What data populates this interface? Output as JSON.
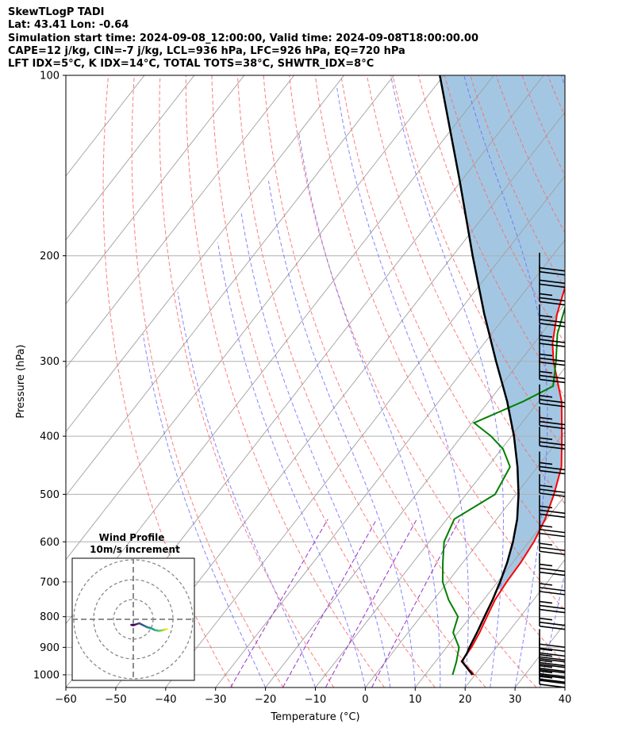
{
  "header": {
    "line1": "SkewTLogP TADI",
    "line2": "Lat: 43.41   Lon: -0.64",
    "line3": "Simulation start time: 2024-09-08_12:00:00, Valid time: 2024-09-08T18:00:00.00",
    "line4": "CAPE=12 j/kg, CIN=-7 j/kg, LCL=936 hPa, LFC=926 hPa, EQ=720 hPa",
    "line5": "LFT IDX=5°C, K IDX=14°C, TOTAL TOTS=38°C, SHWTR_IDX=8°C"
  },
  "chart_data": {
    "type": "line",
    "title": "SkewTLogP TADI",
    "xlabel": "Temperature (°C)",
    "ylabel": "Pressure (hPa)",
    "xlim": [
      -60,
      40
    ],
    "ylim": [
      1050,
      100
    ],
    "y_scale": "log",
    "x_ticks": [
      -60,
      -50,
      -40,
      -30,
      -20,
      -10,
      0,
      10,
      20,
      30,
      40
    ],
    "x_tick_labels": [
      "−60",
      "−50",
      "−40",
      "−30",
      "−20",
      "−10",
      "0",
      "10",
      "20",
      "30",
      "40"
    ],
    "y_ticks": [
      1000,
      900,
      800,
      700,
      600,
      500,
      400,
      300,
      200,
      100
    ],
    "y_tick_labels": [
      "1000",
      "900",
      "800",
      "700",
      "600",
      "500",
      "400",
      "300",
      "200",
      "100"
    ],
    "grid": true,
    "series": [
      {
        "color": "#ff0000",
        "p": [
          1000,
          950,
          920,
          900,
          850,
          800,
          750,
          700,
          650,
          600,
          550,
          500,
          450,
          400,
          350,
          300,
          280,
          250,
          220,
          200,
          180,
          160,
          150,
          140,
          130,
          120,
          110,
          100
        ],
        "t": [
          19.8,
          15.2,
          15.1,
          15.0,
          14.3,
          13.3,
          12.3,
          11.8,
          11.6,
          11.0,
          9.7,
          7.6,
          4.8,
          0.1,
          -5.4,
          -13.3,
          -16.3,
          -20.0,
          -23.2,
          -24.5,
          -24.6,
          -25.0,
          -24.5,
          -23.8,
          -22.4,
          -20.8,
          -18.7,
          -16.2
        ]
      },
      {
        "color": "#008000",
        "p": [
          1000,
          950,
          900,
          850,
          800,
          750,
          700,
          650,
          600,
          550,
          500,
          450,
          420,
          400,
          380,
          350,
          330,
          300,
          270,
          240,
          220,
          200,
          190,
          180,
          170,
          160,
          150,
          140,
          120,
          100
        ],
        "td": [
          15.5,
          14.2,
          12.5,
          9.0,
          7.5,
          3.0,
          -1.0,
          -4.0,
          -7.0,
          -8.5,
          -4.2,
          -5.5,
          -9.7,
          -14.1,
          -19.6,
          -13.1,
          -9.5,
          -12.8,
          -16.8,
          -19.8,
          -21.0,
          -20.8,
          -23.5,
          -27.4,
          -30.6,
          -30.2,
          -29.8,
          -29.6,
          -29.6,
          -28.6
        ]
      },
      {
        "color": "#000000",
        "p": [
          1000,
          950,
          920,
          900,
          850,
          800,
          750,
          700,
          650,
          600,
          550,
          500,
          450,
          400,
          350,
          300,
          250,
          200,
          150,
          100
        ],
        "t": [
          19.5,
          15.3,
          15.0,
          14.6,
          13.8,
          12.8,
          11.8,
          10.5,
          8.9,
          6.8,
          4.1,
          0.5,
          -4.0,
          -9.5,
          -16.3,
          -24.8,
          -34.6,
          -46.0,
          -60.3,
          -80.8
        ]
      }
    ],
    "cape_fill": {
      "color": "#7fb2d8",
      "p_bottom": 720,
      "p_top": 100
    },
    "isotherms": {
      "color": "#a0a0a0",
      "every_c": 10
    },
    "dry_adiabats": {
      "color": "#ff6666",
      "style": "dashed"
    },
    "moist_adiabats": {
      "color": "#6666ff",
      "style": "dashed"
    },
    "mixing_ratio": {
      "color": "#9932cc",
      "style": "dashed"
    },
    "wind_barbs": {
      "color": "#000000",
      "p": [
        1000,
        980,
        960,
        940,
        920,
        900,
        870,
        800,
        750,
        700,
        650,
        600,
        560,
        520,
        480,
        440,
        400,
        370,
        340,
        310,
        290,
        270,
        250,
        230,
        215,
        205
      ],
      "speed_kt": [
        25,
        25,
        25,
        25,
        25,
        25,
        20,
        25,
        25,
        25,
        25,
        25,
        25,
        25,
        25,
        25,
        25,
        25,
        25,
        25,
        25,
        25,
        25,
        25,
        20,
        20
      ]
    },
    "inset": {
      "title": "Wind Profile",
      "subtitle": "10m/s increment",
      "rings_ms": [
        10,
        20,
        30
      ],
      "u": [
        -1.0,
        0.0,
        1.5,
        3.0,
        5.0,
        7.0,
        9.0,
        11.0,
        13.0,
        15.0,
        16.5,
        17.0
      ],
      "v": [
        -2.8,
        -3.0,
        -2.5,
        -2.0,
        -3.0,
        -4.0,
        -4.5,
        -5.5,
        -5.8,
        -5.5,
        -5.0,
        -5.0
      ]
    }
  }
}
